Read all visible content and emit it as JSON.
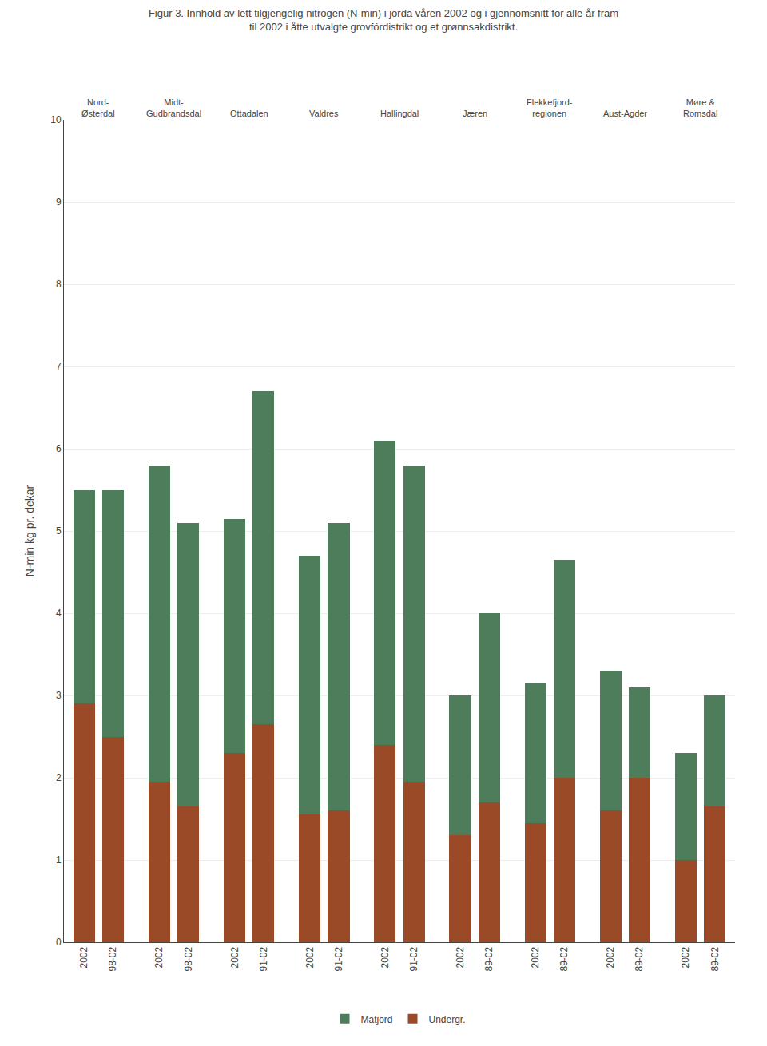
{
  "chart_data": {
    "type": "bar",
    "title": "Figur 3. Innhold av lett tilgjengelig nitrogen (N-min) i jorda våren 2002 og i gjennomsnitt for alle år fram\ntil 2002 i åtte utvalgte grovfórdistrikt og et grønnsakdistrikt.",
    "ylabel": "N-min kg pr. dekar",
    "categories": [
      "2002",
      "98-02",
      "2002",
      "98-02",
      "2002",
      "91-02",
      "2002",
      "91-02",
      "2002",
      "91-02",
      "2002",
      "89-02",
      "2002",
      "89-02",
      "2002",
      "89-02",
      "2002",
      "89-02"
    ],
    "groups": [
      {
        "name": "Nord-\nØsterdal",
        "categories": [
          "2002",
          "98-02"
        ]
      },
      {
        "name": "Midt-\nGudbrandsdal",
        "categories": [
          "2002",
          "98-02"
        ]
      },
      {
        "name": "Ottadalen",
        "categories": [
          "2002",
          "91-02"
        ]
      },
      {
        "name": "Valdres",
        "categories": [
          "2002",
          "91-02"
        ]
      },
      {
        "name": "Hallingdal",
        "categories": [
          "2002",
          "91-02"
        ]
      },
      {
        "name": "Jæren",
        "categories": [
          "2002",
          "89-02"
        ]
      },
      {
        "name": "Flekkefjord-\nregionen",
        "categories": [
          "2002",
          "89-02"
        ]
      },
      {
        "name": "Aust-Agder",
        "categories": [
          "2002",
          "89-02"
        ]
      },
      {
        "name": "Møre &\nRomsdal",
        "categories": [
          "2002",
          "89-02"
        ]
      }
    ],
    "series": [
      {
        "name": "Undergr.",
        "color": "#9B4A28",
        "values": [
          2.9,
          2.5,
          1.95,
          1.65,
          2.3,
          2.65,
          1.55,
          1.6,
          2.4,
          1.95,
          1.3,
          1.7,
          1.45,
          2.0,
          1.6,
          2.0,
          1.0,
          1.65
        ]
      },
      {
        "name": "Matjord",
        "color": "#4E7D5B",
        "values": [
          2.6,
          3.0,
          3.85,
          3.45,
          2.85,
          4.05,
          3.15,
          3.5,
          3.7,
          3.85,
          1.7,
          2.3,
          1.7,
          2.65,
          1.7,
          1.1,
          1.3,
          1.35
        ]
      }
    ],
    "stacked": true,
    "ylim": [
      0,
      10
    ],
    "yticks": [
      0,
      1,
      2,
      3,
      4,
      5,
      6,
      7,
      8,
      9,
      10
    ],
    "grid": true,
    "legend": "bottom"
  }
}
